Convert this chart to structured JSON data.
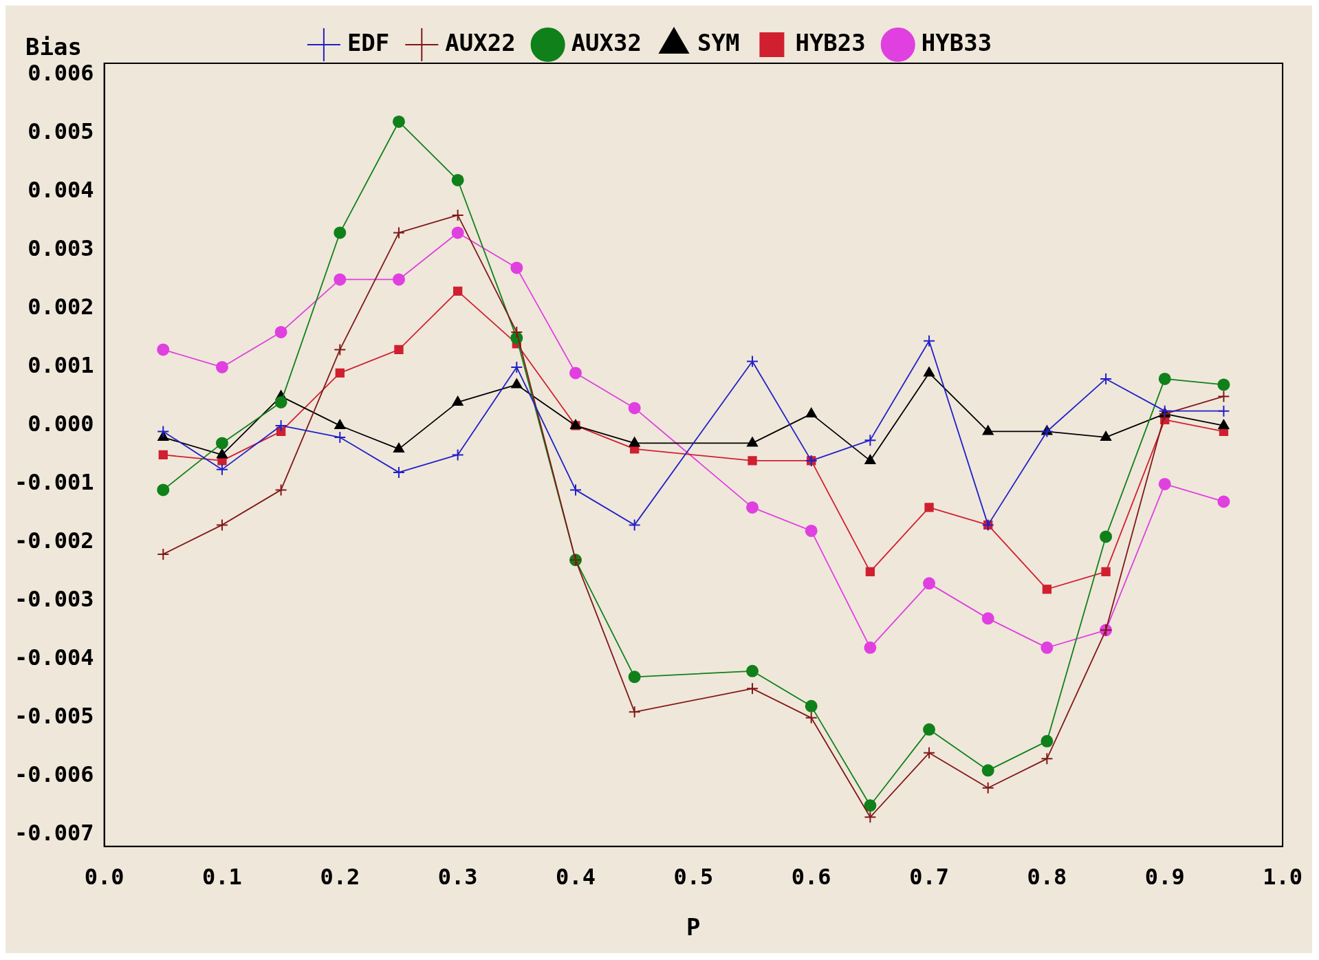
{
  "chart_data": {
    "type": "line",
    "xlabel": "P",
    "ylabel": "Bias",
    "x": [
      0.05,
      0.1,
      0.15,
      0.2,
      0.25,
      0.3,
      0.35,
      0.4,
      0.45,
      0.55,
      0.6,
      0.65,
      0.7,
      0.75,
      0.8,
      0.85,
      0.9,
      0.95
    ],
    "series": [
      {
        "name": "EDF",
        "color": "#2020c8",
        "marker": "cross",
        "values": [
          -0.0001,
          -0.00075,
          0,
          -0.0002,
          -0.0008,
          -0.0005,
          0.001,
          -0.0011,
          -0.0017,
          0.0011,
          -0.0006,
          -0.00025,
          0.00145,
          -0.0017,
          -0.0001,
          0.0008,
          0.00025,
          0.00025
        ]
      },
      {
        "name": "AUX22",
        "color": "#801818",
        "marker": "cross",
        "values": [
          -0.0022,
          -0.0017,
          -0.0011,
          0.0013,
          0.0033,
          0.0036,
          0.0016,
          -0.0023,
          -0.0049,
          -0.0045,
          -0.005,
          -0.0067,
          -0.0056,
          -0.0062,
          -0.0057,
          -0.0035,
          0.0002,
          0.0005
        ]
      },
      {
        "name": "AUX32",
        "color": "#10801a",
        "marker": "circle",
        "values": [
          -0.0011,
          -0.0003,
          0.0004,
          0.0033,
          0.0052,
          0.0042,
          0.0015,
          -0.0023,
          -0.0043,
          -0.0042,
          -0.0048,
          -0.0065,
          -0.0052,
          -0.0059,
          -0.0054,
          -0.0019,
          0.0008,
          0.0007
        ]
      },
      {
        "name": "SYM",
        "color": "#000000",
        "marker": "triangle",
        "values": [
          -0.0002,
          -0.0005,
          0.0005,
          0,
          -0.0004,
          0.0004,
          0.0007,
          0,
          -0.0003,
          -0.0003,
          0.0002,
          -0.0006,
          0.0009,
          -0.0001,
          -0.0001,
          -0.0002,
          0.0002,
          0
        ]
      },
      {
        "name": "HYB23",
        "color": "#d02030",
        "marker": "square",
        "values": [
          -0.0005,
          -0.0006,
          -0.0001,
          0.0009,
          0.0013,
          0.0023,
          0.0014,
          0,
          -0.0004,
          -0.0006,
          -0.0006,
          -0.0025,
          -0.0014,
          -0.0017,
          -0.0028,
          -0.0025,
          0.0001,
          -0.0001
        ]
      },
      {
        "name": "HYB33",
        "color": "#e040e0",
        "marker": "circle",
        "values": [
          0.0013,
          0.001,
          0.0016,
          0.0025,
          0.0025,
          0.0033,
          0.0027,
          0.0009,
          0.0003,
          -0.0014,
          -0.0018,
          -0.0038,
          -0.0027,
          -0.0033,
          -0.0038,
          -0.0035,
          -0.001,
          -0.0013
        ]
      }
    ],
    "xlim": [
      0,
      1
    ],
    "xticks": [
      {
        "value": 0,
        "label": "0.0"
      },
      0.1,
      0.2,
      0.3,
      0.4,
      0.5,
      0.6,
      0.7,
      0.8,
      0.9,
      {
        "value": 1,
        "label": "1.0"
      }
    ],
    "ylim": [
      -0.0072,
      0.0062
    ],
    "yticks": [
      {
        "value": -0.007,
        "label": "-0.007"
      },
      {
        "value": -0.006,
        "label": "-0.006"
      },
      {
        "value": -0.005,
        "label": "-0.005"
      },
      {
        "value": -0.004,
        "label": "-0.004"
      },
      {
        "value": -0.003,
        "label": "-0.003"
      },
      {
        "value": -0.002,
        "label": "-0.002"
      },
      {
        "value": -0.001,
        "label": "-0.001"
      },
      {
        "value": 0,
        "label": "0.000"
      },
      {
        "value": 0.001,
        "label": "0.001"
      },
      {
        "value": 0.002,
        "label": "0.002"
      },
      {
        "value": 0.003,
        "label": "0.003"
      },
      {
        "value": 0.004,
        "label": "0.004"
      },
      {
        "value": 0.005,
        "label": "0.005"
      },
      {
        "value": 0.006,
        "label": "0.006"
      }
    ],
    "grid": false,
    "legend": "top",
    "line_style": "solid"
  }
}
